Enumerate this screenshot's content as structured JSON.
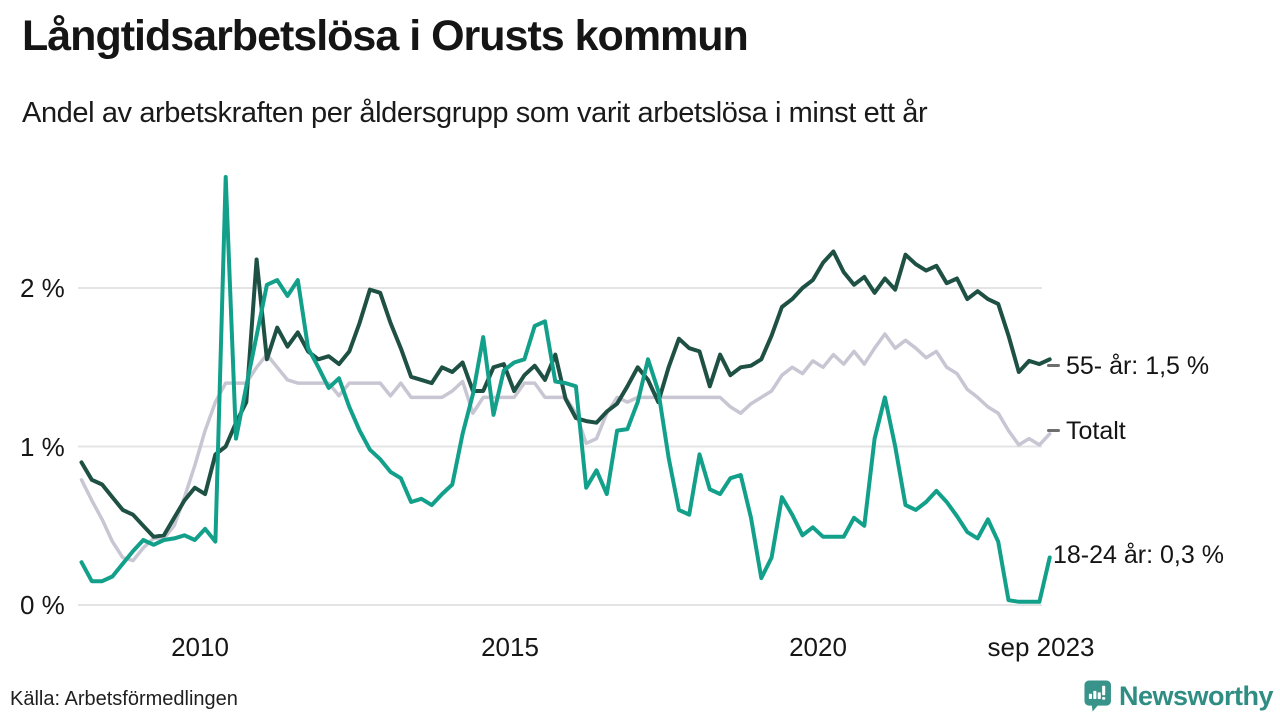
{
  "header": {
    "title": "Långtidsarbetslösa i Orusts kommun",
    "subtitle": "Andel av arbetskraften per åldersgrupp som varit arbetslösa i minst ett år"
  },
  "footer": {
    "source": "Källa: Arbetsförmedlingen"
  },
  "branding": {
    "name": "Newsworthy",
    "logo_icon": "speech-bubble-bar-chart",
    "brand_color": "#2f8d84",
    "icon_color": "#38948b"
  },
  "colors": {
    "series_55": "#1e5044",
    "series_totalt": "#c9c6d4",
    "series_1824": "#12a08a",
    "gridline": "#e4e4e6",
    "text": "#161616"
  },
  "chart_data": {
    "type": "line",
    "title": "Långtidsarbetslösa i Orusts kommun",
    "subtitle": "Andel av arbetskraften per åldersgrupp som varit arbetslösa i minst ett år",
    "unit": "% av arbetskraften",
    "grid": "horizontal",
    "legend_position": "right-of-line-ends",
    "x_axis": {
      "ticks": [
        "2010",
        "2015",
        "2020",
        "sep 2023"
      ],
      "tick_values": [
        2010,
        2015,
        2020,
        2023.67
      ],
      "range": [
        2008.0,
        2023.75
      ]
    },
    "y_axis": {
      "ticks": [
        "0 %",
        "1 %",
        "2 %"
      ],
      "tick_values": [
        0,
        1,
        2
      ],
      "range": [
        0,
        2.8
      ]
    },
    "x_start": 2008.083,
    "x_step_years": 0.16667,
    "series": [
      {
        "name": "Totalt",
        "label": "Totalt",
        "color": "#c9c6d4",
        "end_value": null,
        "values": [
          0.79,
          0.66,
          0.54,
          0.4,
          0.3,
          0.28,
          0.36,
          0.42,
          0.42,
          0.5,
          0.68,
          0.88,
          1.1,
          1.28,
          1.4,
          1.4,
          1.4,
          1.5,
          1.58,
          1.5,
          1.42,
          1.4,
          1.4,
          1.4,
          1.4,
          1.32,
          1.4,
          1.4,
          1.4,
          1.4,
          1.32,
          1.4,
          1.31,
          1.31,
          1.31,
          1.31,
          1.35,
          1.41,
          1.21,
          1.31,
          1.31,
          1.31,
          1.31,
          1.4,
          1.4,
          1.31,
          1.31,
          1.31,
          1.21,
          1.02,
          1.05,
          1.21,
          1.31,
          1.28,
          1.31,
          1.31,
          1.31,
          1.31,
          1.31,
          1.31,
          1.31,
          1.31,
          1.31,
          1.25,
          1.21,
          1.27,
          1.31,
          1.35,
          1.45,
          1.5,
          1.46,
          1.54,
          1.5,
          1.58,
          1.52,
          1.6,
          1.52,
          1.62,
          1.71,
          1.62,
          1.67,
          1.62,
          1.56,
          1.6,
          1.5,
          1.46,
          1.36,
          1.31,
          1.25,
          1.21,
          1.1,
          1.01,
          1.05,
          1.01,
          1.08
        ]
      },
      {
        "name": "55- år",
        "label": "55- år: 1,5 %",
        "color": "#1e5044",
        "end_value": "1,5 %",
        "values": [
          0.9,
          0.79,
          0.76,
          0.68,
          0.6,
          0.57,
          0.5,
          0.43,
          0.44,
          0.55,
          0.66,
          0.74,
          0.7,
          0.95,
          1.0,
          1.15,
          1.28,
          2.18,
          1.55,
          1.75,
          1.63,
          1.72,
          1.6,
          1.55,
          1.57,
          1.52,
          1.6,
          1.78,
          1.99,
          1.97,
          1.78,
          1.62,
          1.44,
          1.42,
          1.4,
          1.5,
          1.47,
          1.53,
          1.35,
          1.35,
          1.5,
          1.52,
          1.35,
          1.45,
          1.51,
          1.42,
          1.58,
          1.3,
          1.18,
          1.16,
          1.15,
          1.22,
          1.27,
          1.38,
          1.5,
          1.42,
          1.28,
          1.5,
          1.68,
          1.62,
          1.6,
          1.38,
          1.58,
          1.45,
          1.5,
          1.51,
          1.55,
          1.7,
          1.88,
          1.93,
          2.0,
          2.05,
          2.16,
          2.23,
          2.1,
          2.02,
          2.07,
          1.97,
          2.06,
          1.99,
          2.21,
          2.15,
          2.11,
          2.14,
          2.03,
          2.06,
          1.93,
          1.98,
          1.93,
          1.9,
          1.7,
          1.47,
          1.54,
          1.52,
          1.55
        ]
      },
      {
        "name": "18-24 år",
        "label": "18-24 år: 0,3 %",
        "color": "#12a08a",
        "end_value": "0,3 %",
        "values": [
          0.27,
          0.15,
          0.15,
          0.18,
          0.26,
          0.34,
          0.41,
          0.38,
          0.41,
          0.42,
          0.44,
          0.41,
          0.48,
          0.4,
          2.7,
          1.05,
          1.38,
          1.7,
          2.02,
          2.05,
          1.95,
          2.05,
          1.62,
          1.5,
          1.37,
          1.43,
          1.25,
          1.1,
          0.98,
          0.92,
          0.84,
          0.8,
          0.65,
          0.67,
          0.63,
          0.7,
          0.76,
          1.08,
          1.33,
          1.69,
          1.2,
          1.48,
          1.53,
          1.55,
          1.76,
          1.79,
          1.41,
          1.4,
          1.38,
          0.74,
          0.85,
          0.7,
          1.1,
          1.11,
          1.28,
          1.55,
          1.35,
          0.93,
          0.6,
          0.57,
          0.95,
          0.73,
          0.7,
          0.8,
          0.82,
          0.55,
          0.17,
          0.3,
          0.68,
          0.57,
          0.44,
          0.49,
          0.43,
          0.43,
          0.43,
          0.55,
          0.5,
          1.05,
          1.31,
          1.0,
          0.63,
          0.6,
          0.65,
          0.72,
          0.65,
          0.56,
          0.46,
          0.42,
          0.54,
          0.4,
          0.03,
          0.02,
          0.02,
          0.02,
          0.3
        ]
      }
    ]
  }
}
